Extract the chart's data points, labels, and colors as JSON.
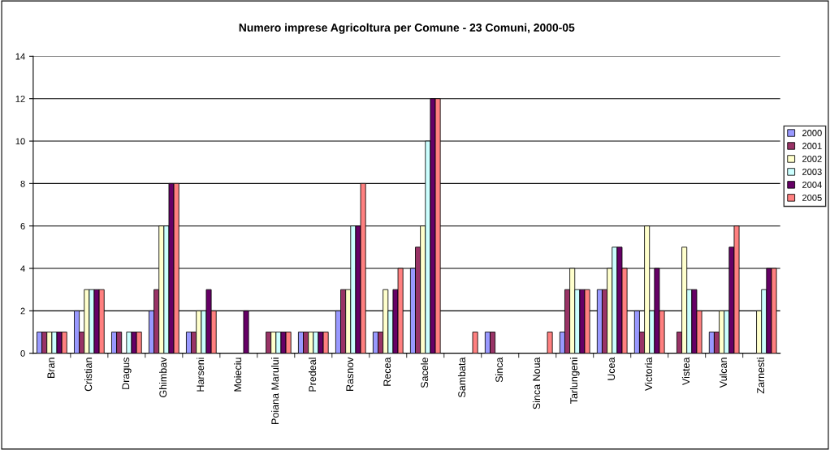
{
  "chart_data": {
    "type": "bar",
    "title": "Numero imprese Agricoltura per Comune - 23 Comuni, 2000-05",
    "categories": [
      "Bran",
      "Cristian",
      "Dragus",
      "Ghimbav",
      "Harseni",
      "Moieciu",
      "Poiana Marului",
      "Predeal",
      "Rasnov",
      "Recea",
      "Sacele",
      "Sambata",
      "Sinca",
      "Sinca Noua",
      "Tarlungeni",
      "Ucea",
      "Victoria",
      "Vistea",
      "Vulcan",
      "Zarnesti"
    ],
    "series": [
      {
        "name": "2000",
        "color": "#9999ff",
        "values": [
          1,
          2,
          1,
          2,
          1,
          null,
          null,
          1,
          2,
          1,
          4,
          null,
          1,
          null,
          1,
          3,
          2,
          null,
          1,
          null
        ]
      },
      {
        "name": "2001",
        "color": "#993366",
        "values": [
          1,
          1,
          1,
          3,
          1,
          null,
          1,
          1,
          3,
          1,
          5,
          null,
          1,
          null,
          3,
          3,
          1,
          1,
          1,
          null
        ]
      },
      {
        "name": "2002",
        "color": "#ffffcc",
        "values": [
          1,
          3,
          null,
          6,
          2,
          null,
          1,
          1,
          3,
          3,
          6,
          null,
          null,
          null,
          4,
          4,
          6,
          5,
          2,
          2
        ]
      },
      {
        "name": "2003",
        "color": "#ccffff",
        "values": [
          1,
          3,
          1,
          6,
          2,
          null,
          1,
          1,
          6,
          2,
          10,
          null,
          null,
          null,
          3,
          5,
          2,
          3,
          2,
          3
        ]
      },
      {
        "name": "2004",
        "color": "#660066",
        "values": [
          1,
          3,
          1,
          8,
          3,
          2,
          1,
          1,
          6,
          3,
          12,
          null,
          null,
          null,
          3,
          5,
          4,
          3,
          5,
          4
        ]
      },
      {
        "name": "2005",
        "color": "#ff8080",
        "values": [
          1,
          3,
          1,
          8,
          2,
          null,
          1,
          1,
          8,
          4,
          12,
          1,
          null,
          1,
          3,
          4,
          2,
          2,
          6,
          4
        ]
      }
    ],
    "ylim": [
      0,
      14
    ],
    "yticks": [
      0,
      2,
      4,
      6,
      8,
      10,
      12,
      14
    ],
    "grid": "y",
    "legend": "right"
  }
}
